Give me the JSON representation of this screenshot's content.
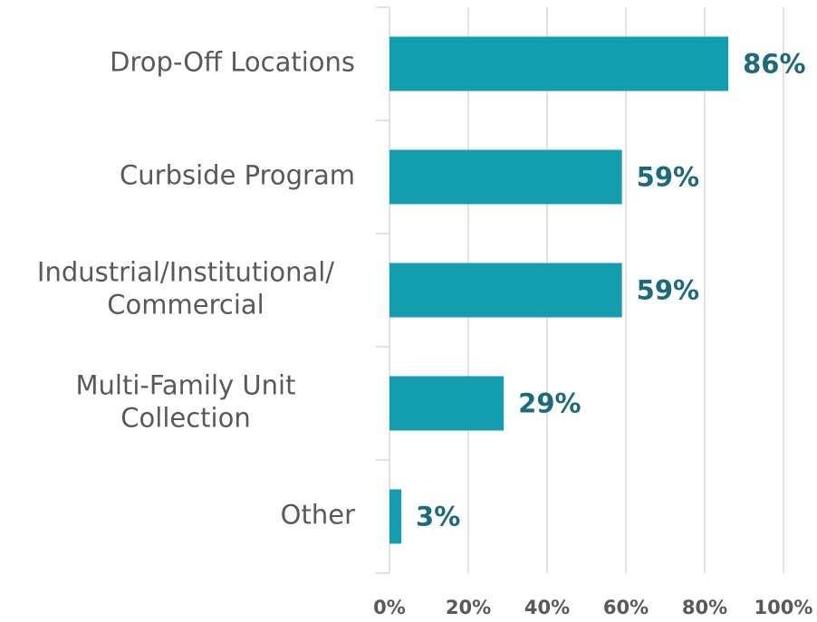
{
  "chart_data": {
    "type": "hbar",
    "categories": [
      [
        "Drop-Off Locations"
      ],
      [
        "Curbside Program"
      ],
      [
        "Industrial/Institutional/",
        "Commercial"
      ],
      [
        "Multi-Family Unit",
        "Collection"
      ],
      [
        "Other"
      ]
    ],
    "values": [
      86,
      59,
      59,
      29,
      3
    ],
    "value_labels": [
      "86%",
      "59%",
      "59%",
      "29%",
      "3%"
    ],
    "color": "#139eaf",
    "xlim": [
      0,
      100
    ],
    "xticks": [
      {
        "value": 0,
        "label": "0%"
      },
      {
        "value": 20,
        "label": "20%"
      },
      {
        "value": 40,
        "label": "40%"
      },
      {
        "value": 60,
        "label": "60%"
      },
      {
        "value": 80,
        "label": "80%"
      },
      {
        "value": 100,
        "label": "100%"
      }
    ],
    "grid": true
  }
}
